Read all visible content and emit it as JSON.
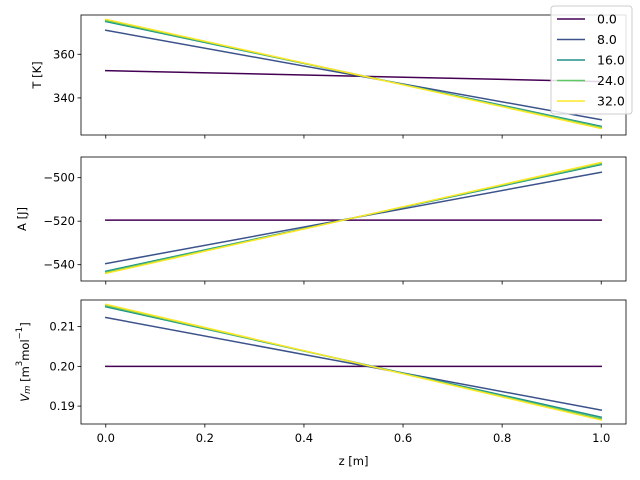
{
  "chart_data": [
    {
      "type": "line",
      "ylabel": "T [K]",
      "xlim": [
        -0.05,
        1.05
      ],
      "ylim": [
        323,
        378
      ],
      "yticks": [
        340,
        360
      ],
      "yticklabels": [
        "340",
        "360"
      ],
      "x": [
        0,
        1
      ],
      "series": [
        {
          "name": "0.0",
          "color": "#440154",
          "values": [
            352.5,
            347.5
          ]
        },
        {
          "name": "8.0",
          "color": "#3b528b",
          "values": [
            371,
            330
          ]
        },
        {
          "name": "16.0",
          "color": "#21918c",
          "values": [
            375,
            327
          ]
        },
        {
          "name": "24.0",
          "color": "#5ec962",
          "values": [
            375.5,
            326.5
          ]
        },
        {
          "name": "32.0",
          "color": "#fde725",
          "values": [
            376,
            326
          ]
        }
      ],
      "legend": {
        "placement": "top-right"
      }
    },
    {
      "type": "line",
      "ylabel": "A [J]",
      "xlim": [
        -0.05,
        1.05
      ],
      "ylim": [
        -547.5,
        -490.5
      ],
      "yticks": [
        -540,
        -520,
        -500
      ],
      "yticklabels": [
        "−540",
        "−520",
        "−500"
      ],
      "x": [
        0,
        1
      ],
      "series": [
        {
          "name": "0.0",
          "color": "#440154",
          "values": [
            -519.5,
            -519.5
          ]
        },
        {
          "name": "8.0",
          "color": "#3b528b",
          "values": [
            -539.5,
            -497.5
          ]
        },
        {
          "name": "16.0",
          "color": "#21918c",
          "values": [
            -543,
            -494
          ]
        },
        {
          "name": "24.0",
          "color": "#5ec962",
          "values": [
            -543.5,
            -493.5
          ]
        },
        {
          "name": "32.0",
          "color": "#fde725",
          "values": [
            -544,
            -493
          ]
        }
      ]
    },
    {
      "type": "line",
      "ylabel_main": "V",
      "ylabel_sub": "m",
      "ylabel_unit_start": " [m",
      "ylabel_unit_sup1": "3",
      "ylabel_unit_mid": "mol",
      "ylabel_unit_sup2": "−1",
      "ylabel_unit_end": "]",
      "xlabel": "z [m]",
      "xlim": [
        -0.05,
        1.05
      ],
      "ylim": [
        0.1855,
        0.2167
      ],
      "yticks": [
        0.19,
        0.2,
        0.21
      ],
      "yticklabels": [
        "0.19",
        "0.20",
        "0.21"
      ],
      "xticks": [
        0,
        0.2,
        0.4,
        0.6,
        0.8,
        1.0
      ],
      "xticklabels": [
        "0.0",
        "0.2",
        "0.4",
        "0.6",
        "0.8",
        "1.0"
      ],
      "x": [
        0,
        1
      ],
      "series": [
        {
          "name": "0.0",
          "color": "#440154",
          "values": [
            0.2,
            0.2
          ]
        },
        {
          "name": "8.0",
          "color": "#3b528b",
          "values": [
            0.2123,
            0.189
          ]
        },
        {
          "name": "16.0",
          "color": "#21918c",
          "values": [
            0.215,
            0.1872
          ]
        },
        {
          "name": "24.0",
          "color": "#5ec962",
          "values": [
            0.2153,
            0.1868
          ]
        },
        {
          "name": "32.0",
          "color": "#fde725",
          "values": [
            0.2156,
            0.1865
          ]
        }
      ]
    }
  ]
}
